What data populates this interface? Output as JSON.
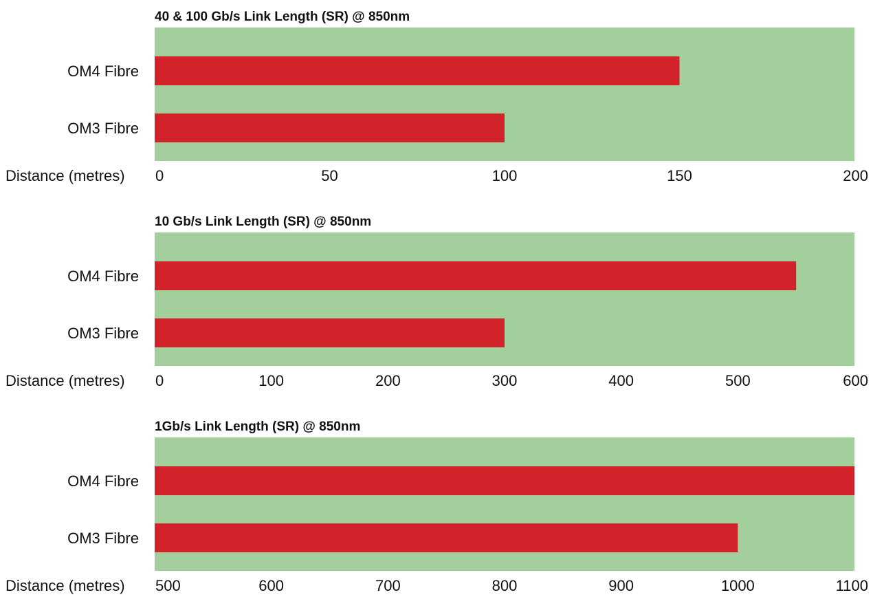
{
  "colors": {
    "plot_background": "#a3cf9c",
    "bar": "#d2232b",
    "text": "#111111"
  },
  "chart_data": [
    {
      "type": "bar",
      "orientation": "horizontal",
      "title": "40 & 100 Gb/s Link Length (SR) @ 850nm",
      "xlabel": "Distance (metres)",
      "ylabel": "",
      "categories": [
        "OM4 Fibre",
        "OM3 Fibre"
      ],
      "values": [
        150,
        100
      ],
      "xlim": [
        0,
        200
      ],
      "xticks": [
        0,
        50,
        100,
        150,
        200
      ],
      "grid": false,
      "legend": "none"
    },
    {
      "type": "bar",
      "orientation": "horizontal",
      "title": "10 Gb/s Link Length (SR) @ 850nm",
      "xlabel": "Distance (metres)",
      "ylabel": "",
      "categories": [
        "OM4 Fibre",
        "OM3 Fibre"
      ],
      "values": [
        550,
        300
      ],
      "xlim": [
        0,
        600
      ],
      "xticks": [
        0,
        100,
        200,
        300,
        400,
        500,
        600
      ],
      "grid": false,
      "legend": "none"
    },
    {
      "type": "bar",
      "orientation": "horizontal",
      "title": "1Gb/s Link Length (SR) @ 850nm",
      "xlabel": "Distance (metres)",
      "ylabel": "",
      "categories": [
        "OM4 Fibre",
        "OM3 Fibre"
      ],
      "values": [
        1100,
        1000
      ],
      "xlim": [
        500,
        1100
      ],
      "xticks": [
        500,
        600,
        700,
        800,
        900,
        1000,
        1100
      ],
      "grid": false,
      "legend": "none"
    }
  ]
}
